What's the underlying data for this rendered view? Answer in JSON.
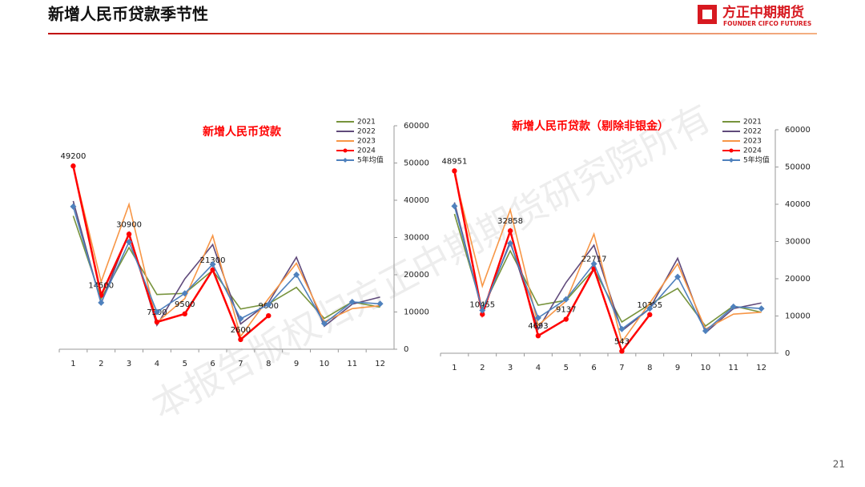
{
  "header": {
    "title": "新增人民币贷款季节性",
    "logo": "方正中期期货",
    "logo_sub": "FOUNDER CIFCO FUTURES"
  },
  "watermark": "本报告版权归方正中期期货研究院所有",
  "page_number": "21",
  "chart_data": [
    {
      "type": "line",
      "title": "新增人民币贷款",
      "categories": [
        "1",
        "2",
        "3",
        "4",
        "5",
        "6",
        "7",
        "8",
        "9",
        "10",
        "11",
        "12"
      ],
      "ylim": [
        0,
        60000
      ],
      "yticks": [
        0,
        10000,
        20000,
        30000,
        40000,
        50000,
        60000
      ],
      "y_axis_side": "right",
      "legend": "upper right",
      "series": [
        {
          "name": "2021",
          "color": "#77933c",
          "values": [
            35800,
            13600,
            27300,
            14700,
            15000,
            21200,
            10800,
            12200,
            16600,
            8262,
            12700,
            11300
          ]
        },
        {
          "name": "2022",
          "color": "#604a7b",
          "values": [
            39800,
            12300,
            31300,
            6454,
            18900,
            28100,
            6790,
            12500,
            24700,
            6152,
            12100,
            14000
          ]
        },
        {
          "name": "2023",
          "color": "#f79646",
          "values": [
            49000,
            18100,
            38900,
            7188,
            13600,
            30500,
            3459,
            13600,
            23100,
            7384,
            10900,
            11700
          ]
        },
        {
          "name": "2024",
          "color": "#ff0000",
          "marker": "circle",
          "data_labels": true,
          "values": [
            49200,
            14500,
            30900,
            7300,
            9500,
            21300,
            2600,
            9000,
            null,
            null,
            null,
            null
          ]
        },
        {
          "name": "5年均值",
          "color": "#4f81bd",
          "marker": "diamond",
          "values": [
            38300,
            12500,
            28800,
            10000,
            15000,
            22800,
            8200,
            12000,
            20000,
            6900,
            12700,
            12200
          ]
        }
      ]
    },
    {
      "type": "line",
      "title": "新增人民币贷款（剔除非银金）",
      "categories": [
        "1",
        "2",
        "3",
        "4",
        "5",
        "6",
        "7",
        "8",
        "9",
        "10",
        "11",
        "12"
      ],
      "ylim": [
        0,
        60000
      ],
      "yticks": [
        0,
        10000,
        20000,
        30000,
        40000,
        50000,
        60000
      ],
      "y_axis_side": "right",
      "legend": "upper right",
      "series": [
        {
          "name": "2021",
          "color": "#77933c",
          "values": [
            37400,
            12000,
            27500,
            12900,
            14200,
            22600,
            8400,
            13100,
            17400,
            7300,
            12700,
            11000
          ]
        },
        {
          "name": "2022",
          "color": "#604a7b",
          "values": [
            40500,
            11000,
            30000,
            6500,
            19000,
            29000,
            6000,
            12000,
            25500,
            5500,
            12000,
            13500
          ]
        },
        {
          "name": "2023",
          "color": "#f79646",
          "values": [
            48000,
            18000,
            38500,
            7500,
            14000,
            32000,
            3000,
            13500,
            24000,
            6500,
            10500,
            11000
          ]
        },
        {
          "name": "2024",
          "color": "#ff0000",
          "marker": "circle",
          "data_labels": true,
          "values": [
            48951,
            10455,
            32858,
            4693,
            9137,
            22717,
            543,
            10355,
            null,
            null,
            null,
            null
          ]
        },
        {
          "name": "5年均值",
          "color": "#4f81bd",
          "marker": "diamond",
          "values": [
            39500,
            11500,
            29500,
            9500,
            14500,
            24000,
            6500,
            12000,
            20500,
            6000,
            12500,
            12000
          ]
        }
      ]
    }
  ]
}
